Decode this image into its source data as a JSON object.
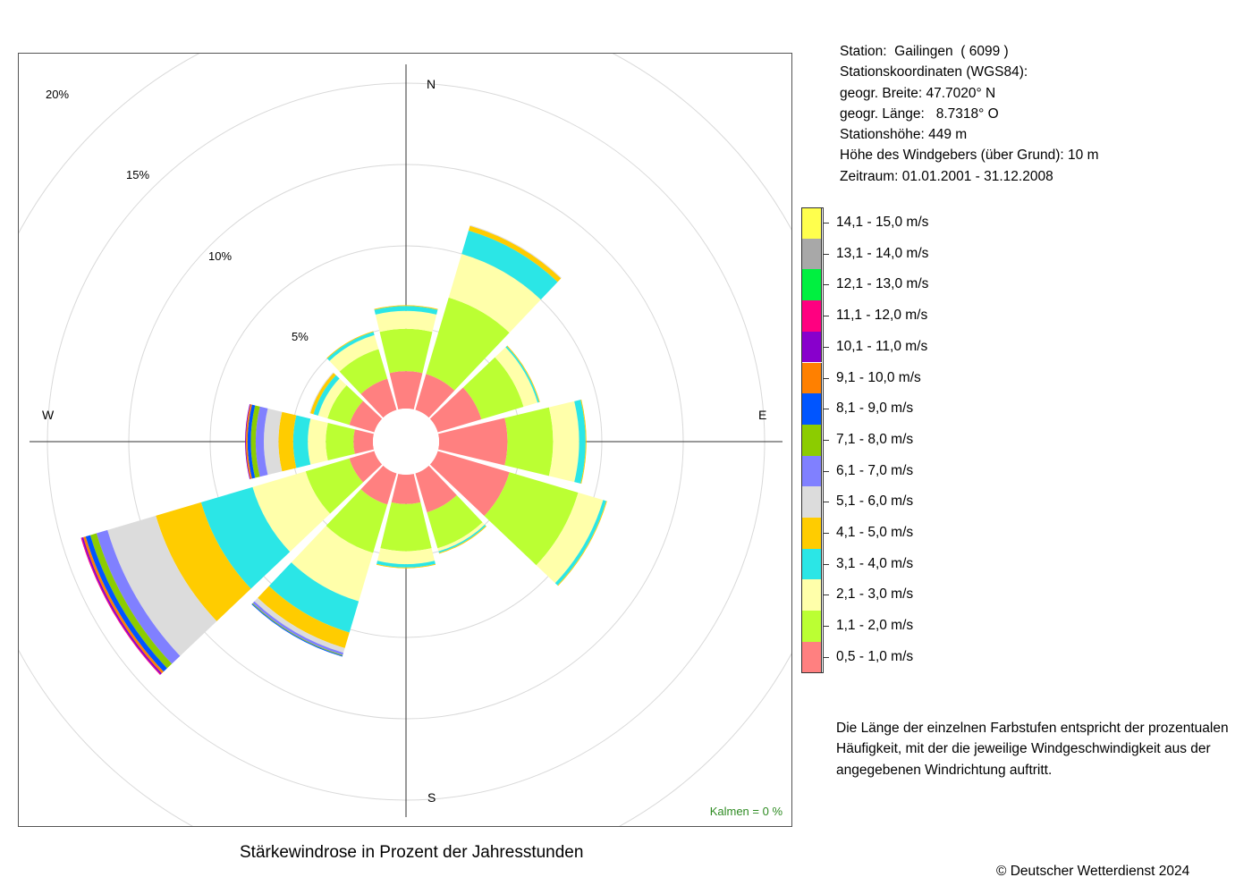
{
  "station": {
    "line1": "Station:  Gailingen  ( 6099 )",
    "line2": "Stationskoordinaten (WGS84):",
    "line3": "geogr. Breite: 47.7020° N",
    "line4": "geogr. Länge:   8.7318° O",
    "line5": "Stationshöhe: 449 m",
    "line6": "Höhe des Windgebers (über Grund): 10 m",
    "line7": "Zeitraum: 01.01.2001 - 31.12.2008"
  },
  "legend": [
    {
      "label": "14,1 - 15,0 m/s",
      "color": "#ffff4d"
    },
    {
      "label": "13,1 - 14,0 m/s",
      "color": "#a8a8a8"
    },
    {
      "label": "12,1 - 13,0 m/s",
      "color": "#00f040"
    },
    {
      "label": "11,1 - 12,0 m/s",
      "color": "#ff0080"
    },
    {
      "label": "10,1 - 11,0 m/s",
      "color": "#8800cc"
    },
    {
      "label": "9,1 - 10,0 m/s",
      "color": "#ff8000"
    },
    {
      "label": "8,1 - 9,0 m/s",
      "color": "#0055ff"
    },
    {
      "label": "7,1 - 8,0 m/s",
      "color": "#8ccc00"
    },
    {
      "label": "6,1 - 7,0 m/s",
      "color": "#8080ff"
    },
    {
      "label": "5,1 - 6,0 m/s",
      "color": "#dcdcdc"
    },
    {
      "label": "4,1 - 5,0 m/s",
      "color": "#ffcc00"
    },
    {
      "label": "3,1 - 4,0 m/s",
      "color": "#2be6e6"
    },
    {
      "label": "2,1 - 3,0 m/s",
      "color": "#ffffaa"
    },
    {
      "label": "1,1 - 2,0 m/s",
      "color": "#bbff33"
    },
    {
      "label": "0,5 - 1,0 m/s",
      "color": "#ff8080"
    }
  ],
  "note": "Die Länge der einzelnen Farbstufen entspricht der prozentualen Häufigkeit, mit der die jeweilige Windgeschwindigkeit aus der angegebenen Windrichtung auftritt.",
  "copyright": "© Deutscher Wetterdienst  2024",
  "chart_data": {
    "type": "wind-rose",
    "title": "Stärkewindrose in Prozent der Jahresstunden",
    "compass": {
      "n": "N",
      "e": "E",
      "s": "S",
      "w": "W"
    },
    "ring_labels": [
      "5%",
      "10%",
      "15%",
      "20%"
    ],
    "rings": [
      5,
      10,
      15,
      20,
      25
    ],
    "calm_label": "Kalmen  =  0 %",
    "speed_classes": [
      "0,5 - 1,0 m/s",
      "1,1 - 2,0 m/s",
      "2,1 - 3,0 m/s",
      "3,1 - 4,0 m/s",
      "4,1 - 5,0 m/s",
      "5,1 - 6,0 m/s",
      "6,1 - 7,0 m/s",
      "7,1 - 8,0 m/s",
      "8,1 - 9,0 m/s",
      "9,1 - 10,0 m/s",
      "10,1 - 11,0 m/s",
      "11,1 - 12,0 m/s",
      "12,1 - 13,0 m/s",
      "13,1 - 14,0 m/s",
      "14,1 - 15,0 m/s"
    ],
    "directions": [
      {
        "dir": 0,
        "values": [
          2.3,
          2.6,
          1.1,
          0.3,
          0.05
        ]
      },
      {
        "dir": 30,
        "values": [
          2.3,
          4.9,
          2.8,
          1.5,
          0.3,
          0.05
        ]
      },
      {
        "dir": 60,
        "values": [
          2.8,
          2.7,
          0.9,
          0.1,
          0.05
        ]
      },
      {
        "dir": 90,
        "values": [
          4.2,
          2.8,
          1.6,
          0.4,
          0.05
        ]
      },
      {
        "dir": 120,
        "values": [
          4.6,
          4.4,
          1.6,
          0.2,
          0.05
        ]
      },
      {
        "dir": 150,
        "values": [
          2.5,
          2.3,
          0.2,
          0.1,
          0.05
        ]
      },
      {
        "dir": 180,
        "values": [
          1.8,
          2.9,
          0.8,
          0.2,
          0.05
        ]
      },
      {
        "dir": 210,
        "values": [
          2.0,
          3.1,
          3.1,
          2.0,
          1.0,
          0.3,
          0.15,
          0.05,
          0.05
        ]
      },
      {
        "dir": 240,
        "values": [
          1.6,
          2.8,
          3.4,
          3.3,
          2.9,
          3.1,
          0.7,
          0.4,
          0.3,
          0.15,
          0.1,
          0.05
        ]
      },
      {
        "dir": 270,
        "values": [
          1.2,
          1.7,
          1.1,
          0.9,
          0.9,
          0.9,
          0.5,
          0.3,
          0.2,
          0.1,
          0.05
        ]
      },
      {
        "dir": 300,
        "values": [
          1.6,
          1.4,
          0.6,
          0.3,
          0.2,
          0.05
        ]
      },
      {
        "dir": 330,
        "values": [
          2.0,
          1.9,
          0.9,
          0.2,
          0.05
        ]
      }
    ]
  }
}
